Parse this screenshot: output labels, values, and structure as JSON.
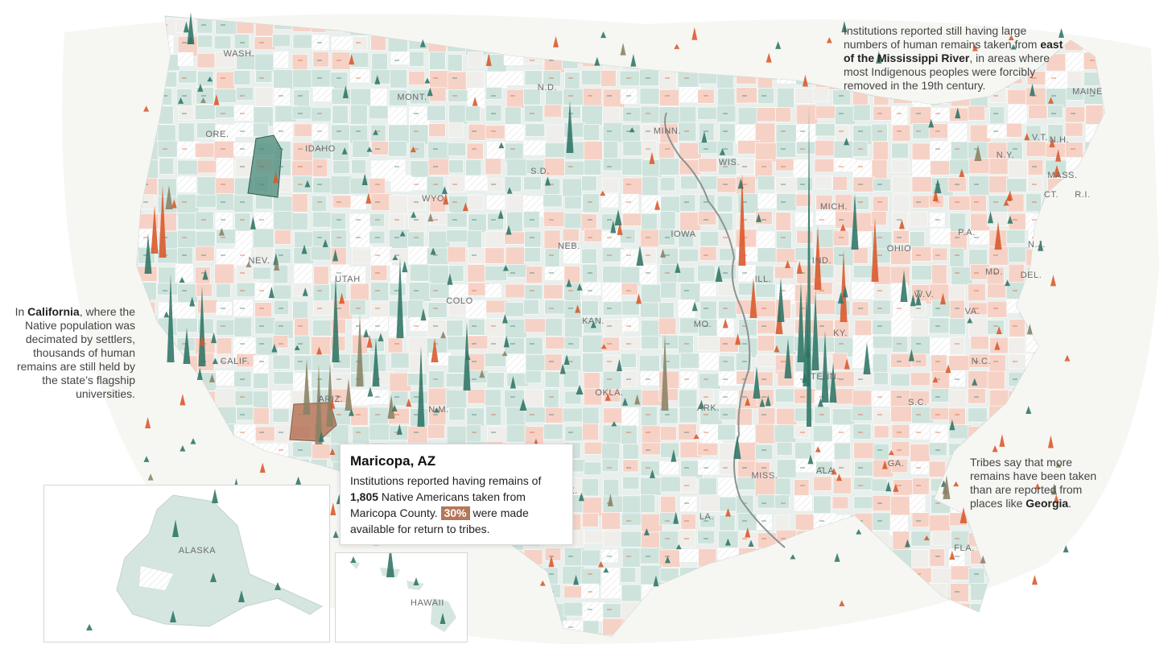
{
  "colors": {
    "background": "#ffffff",
    "land_base": "#e8efec",
    "teal_fill": "#cfe3dd",
    "salmon_fill": "#f6d2c6",
    "neutral_fill": "#efeeea",
    "no_data_fill": "#ffffff",
    "teal_spike": "#2e7465",
    "orange_spike": "#d9572a",
    "olive_spike": "#8a8164",
    "highlight_county": "#b5775a",
    "highlight_oregon": "#4a8a78",
    "river": "#8c9290"
  },
  "state_labels": [
    {
      "id": "wash",
      "text": "WASH."
    },
    {
      "id": "ore",
      "text": "ORE."
    },
    {
      "id": "idaho",
      "text": "IDAHO"
    },
    {
      "id": "mont",
      "text": "MONT."
    },
    {
      "id": "nd",
      "text": "N.D."
    },
    {
      "id": "sd",
      "text": "S.D."
    },
    {
      "id": "wyo",
      "text": "WYO."
    },
    {
      "id": "nev",
      "text": "NEV."
    },
    {
      "id": "utah",
      "text": "UTAH"
    },
    {
      "id": "colo",
      "text": "COLO"
    },
    {
      "id": "calif",
      "text": "CALIF."
    },
    {
      "id": "ariz",
      "text": "ARIZ."
    },
    {
      "id": "nm",
      "text": "N.M."
    },
    {
      "id": "neb",
      "text": "NEB."
    },
    {
      "id": "kan",
      "text": "KAN."
    },
    {
      "id": "okla",
      "text": "OKLA."
    },
    {
      "id": "minn",
      "text": "MINN."
    },
    {
      "id": "iowa",
      "text": "IOWA"
    },
    {
      "id": "mo",
      "text": "MO."
    },
    {
      "id": "ark",
      "text": "ARK."
    },
    {
      "id": "wis",
      "text": "WIS."
    },
    {
      "id": "ill",
      "text": "ILL."
    },
    {
      "id": "mich",
      "text": "MICH."
    },
    {
      "id": "ind",
      "text": "IND."
    },
    {
      "id": "ohio",
      "text": "OHIO"
    },
    {
      "id": "ky",
      "text": "KY."
    },
    {
      "id": "tenn",
      "text": "TENN."
    },
    {
      "id": "miss",
      "text": "MISS."
    },
    {
      "id": "ala",
      "text": "ALA."
    },
    {
      "id": "ga",
      "text": "GA."
    },
    {
      "id": "fla",
      "text": "FLA."
    },
    {
      "id": "sc",
      "text": "S.C."
    },
    {
      "id": "nc",
      "text": "N.C."
    },
    {
      "id": "va",
      "text": "VA."
    },
    {
      "id": "wv",
      "text": "W.V."
    },
    {
      "id": "pa",
      "text": "P.A."
    },
    {
      "id": "md",
      "text": "MD."
    },
    {
      "id": "del",
      "text": "DEL."
    },
    {
      "id": "nj",
      "text": "N.J."
    },
    {
      "id": "ny",
      "text": "N.Y."
    },
    {
      "id": "vt",
      "text": "V.T."
    },
    {
      "id": "nh",
      "text": "N.H."
    },
    {
      "id": "mass",
      "text": "MASS."
    },
    {
      "id": "ct",
      "text": "CT."
    },
    {
      "id": "ri",
      "text": "R.I."
    },
    {
      "id": "maine",
      "text": "MAINE"
    },
    {
      "id": "la",
      "text": "LA."
    },
    {
      "id": "tex",
      "text": "X."
    },
    {
      "id": "alaska",
      "text": "ALASKA"
    },
    {
      "id": "hawaii",
      "text": "HAWAII"
    }
  ],
  "annotations": {
    "california": {
      "pre": "In ",
      "bold": "California",
      "post": ", where the Native population was decimated by settlers, thousands of human remains are still held by the state’s flagship universities."
    },
    "mississippi": {
      "pre": "Institutions reported still having large numbers of human remains taken from ",
      "bold": "east of the Mississippi River",
      "post": ", in areas where most Indigenous peoples were forcibly removed in the 19th century."
    },
    "georgia": {
      "pre": "Tribes say that more remains have been taken than are reported from places like ",
      "bold": "Georgia",
      "post": "."
    }
  },
  "tooltip": {
    "title": "Maricopa, AZ",
    "line_pre": "Institutions reported having remains of ",
    "count": "1,805",
    "line_mid": " Native Americans taken from Maricopa County. ",
    "percent": "30%",
    "line_post": " were made available for return to tribes."
  }
}
